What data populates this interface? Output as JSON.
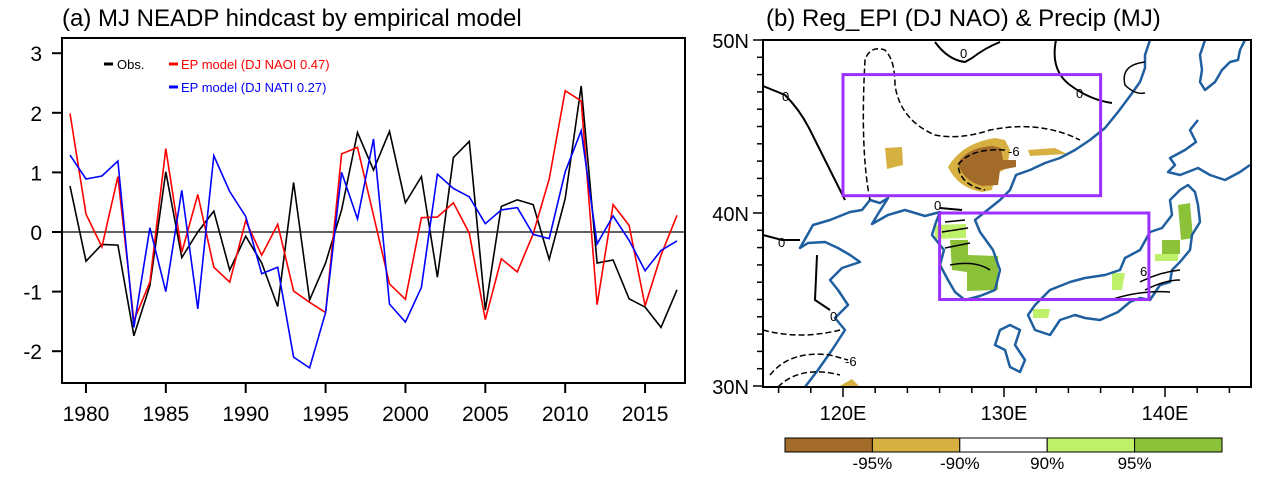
{
  "chart_data": [
    {
      "type": "line",
      "title": "(a) MJ NEADP hindcast by empirical model",
      "xlabel": "",
      "ylabel": "",
      "xlim": [
        1978.5,
        2017.5
      ],
      "ylim": [
        -2.5,
        3.1
      ],
      "x_ticks": [
        1980,
        1985,
        1990,
        1995,
        2000,
        2005,
        2010,
        2015
      ],
      "x_tick_labels": [
        "1980",
        "1985",
        "1990",
        "1995",
        "2000",
        "2005",
        "2010",
        "2015"
      ],
      "y_ticks": [
        -2,
        -1,
        0,
        1,
        2,
        3
      ],
      "y_tick_labels": [
        "-2",
        "-1",
        "0",
        "1",
        "2",
        "3"
      ],
      "zero_line": true,
      "grid": false,
      "legend_position": "top-left",
      "x": [
        1979,
        1980,
        1981,
        1982,
        1983,
        1984,
        1985,
        1986,
        1987,
        1988,
        1989,
        1990,
        1991,
        1992,
        1993,
        1994,
        1995,
        1996,
        1997,
        1998,
        1999,
        2000,
        2001,
        2002,
        2003,
        2004,
        2005,
        2006,
        2007,
        2008,
        2009,
        2010,
        2011,
        2012,
        2013,
        2014,
        2015,
        2016,
        2017
      ],
      "series": [
        {
          "name": "Obs.",
          "color": "#000000",
          "values": [
            0.77,
            -0.49,
            -0.21,
            -0.22,
            -1.74,
            -0.9,
            1.01,
            -0.43,
            0.0,
            0.35,
            -0.64,
            -0.07,
            -0.52,
            -1.25,
            0.83,
            -1.14,
            -0.52,
            0.37,
            1.67,
            1.04,
            1.69,
            0.49,
            0.93,
            -0.76,
            1.25,
            1.52,
            -1.31,
            0.43,
            0.54,
            0.46,
            -0.46,
            0.56,
            2.45,
            -0.52,
            -0.47,
            -1.12,
            -1.26,
            -1.6,
            -0.97
          ]
        },
        {
          "name": "EP model (DJ NAOI 0.47)",
          "color": "#ff0000",
          "values": [
            1.99,
            0.3,
            -0.25,
            0.93,
            -1.49,
            -0.84,
            1.4,
            -0.34,
            0.63,
            -0.59,
            -0.84,
            0.19,
            -0.39,
            0.13,
            -0.99,
            -1.18,
            -1.35,
            1.31,
            1.42,
            0.28,
            -0.87,
            -1.13,
            0.24,
            0.25,
            0.49,
            -0.02,
            -1.47,
            -0.45,
            -0.67,
            -0.03,
            0.89,
            2.37,
            2.2,
            -1.22,
            0.46,
            0.11,
            -1.24,
            -0.39,
            0.28
          ]
        },
        {
          "name": "EP model (DJ NATI 0.27)",
          "color": "#0000ff",
          "values": [
            1.29,
            0.89,
            0.94,
            1.19,
            -1.6,
            0.07,
            -1.0,
            0.7,
            -1.29,
            1.28,
            0.68,
            0.26,
            -0.7,
            -0.59,
            -2.1,
            -2.28,
            -1.35,
            1.0,
            0.22,
            1.56,
            -1.21,
            -1.51,
            -0.93,
            0.97,
            0.73,
            0.59,
            0.14,
            0.37,
            0.41,
            -0.04,
            -0.11,
            1.01,
            1.7,
            -0.2,
            0.27,
            -0.14,
            -0.65,
            -0.31,
            -0.15
          ]
        }
      ]
    },
    {
      "type": "heatmap",
      "title": "(b) Reg_EPI (DJ NAO) & Precip (MJ)",
      "xlim": [
        115,
        145
      ],
      "ylim": [
        30,
        50
      ],
      "x_tick_labels": [
        "120E",
        "130E",
        "140E"
      ],
      "x_ticks": [
        120,
        130,
        140
      ],
      "y_tick_labels": [
        "30N",
        "40N",
        "50N"
      ],
      "y_ticks": [
        30,
        40,
        50
      ],
      "contour_labels": [
        "0",
        "-6",
        "6"
      ],
      "boxes": [
        {
          "name": "north-box",
          "lon": [
            120,
            136
          ],
          "lat": [
            41,
            48
          ]
        },
        {
          "name": "south-box",
          "lon": [
            126,
            139
          ],
          "lat": [
            35,
            40
          ]
        }
      ],
      "colorbar": {
        "labels": [
          "-95%",
          "-90%",
          "90%",
          "95%"
        ],
        "colors": [
          "#a26b2a",
          "#d6b040",
          "#ffffff",
          "#bff06a",
          "#8cc23a"
        ]
      },
      "box_color": "#9b30ff",
      "coast_color": "#1f5f9f"
    }
  ]
}
